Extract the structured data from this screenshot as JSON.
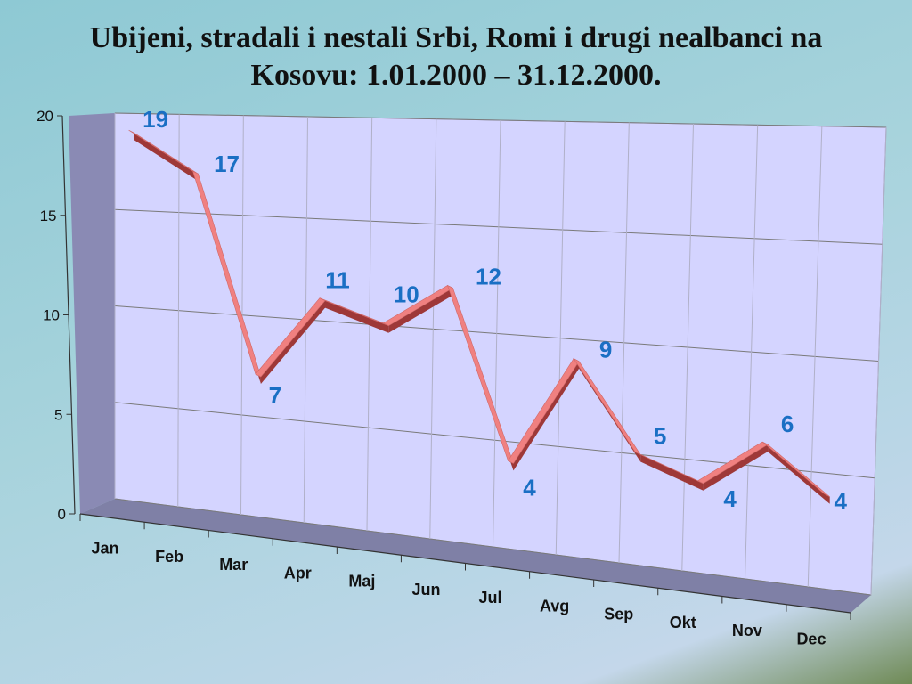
{
  "title_lines": [
    "Ubijeni, stradali i nestali Srbi, Romi i drugi nealbanci na",
    "Kosovu: 1.01.2000 – 31.12.2000."
  ],
  "colors": {
    "wall": "#d4d4ff",
    "side_wall": "#8a8ab4",
    "floor": "#7f80a6",
    "grid": "#7a7a7a",
    "line_top": "#f08080",
    "line_side": "#9e3838",
    "label": "#1a6fc4"
  },
  "chart_data": {
    "type": "line",
    "title": "Ubijeni, stradali i nestali Srbi, Romi i drugi nealbanci na Kosovu: 1.01.2000 – 31.12.2000.",
    "categories": [
      "Jan",
      "Feb",
      "Mar",
      "Apr",
      "Maj",
      "Jun",
      "Jul",
      "Avg",
      "Sep",
      "Okt",
      "Nov",
      "Dec"
    ],
    "values": [
      19,
      17,
      7,
      11,
      10,
      12,
      4,
      9,
      5,
      4,
      6,
      4
    ],
    "yticks": [
      0,
      5,
      10,
      15,
      20
    ],
    "ylim": [
      0,
      20
    ],
    "xlabel": "",
    "ylabel": "",
    "grid": true,
    "legend": "none",
    "style": "3d"
  }
}
